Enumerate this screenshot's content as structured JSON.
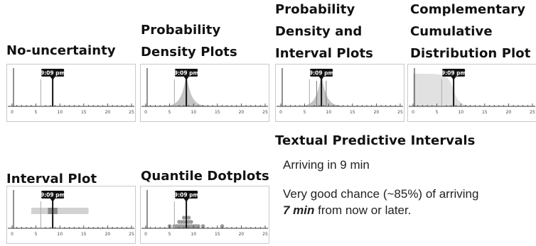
{
  "titles": {
    "no_uncertainty": "No-uncertainty",
    "pdf": "Probability Density Plots",
    "pdf_interval": "Probability Density and Interval Plots",
    "ccdf": "Complementary Cumulative Distribution Plot",
    "interval": "Interval Plot",
    "dotplot": "Quantile Dotplots",
    "textual": "Textual Predictive Intervals"
  },
  "bus_time_label": "9:09 pm",
  "axis": {
    "min": 0,
    "max": 25,
    "tick_labels": [
      "0",
      "5",
      "10",
      "15",
      "20",
      "25"
    ]
  },
  "chart_data": {
    "type": "diagram",
    "predicted_arrival_min": 8.5,
    "schedule_marker_min": 6,
    "interval_outer": [
      4,
      16
    ],
    "interval_inner": [
      7.5,
      9.5
    ],
    "density": {
      "mode": 8.5,
      "scale": 1.0
    },
    "dotplot_quantiles": [
      5,
      6,
      6.5,
      7,
      7,
      7.5,
      7.5,
      8,
      8,
      8,
      8.5,
      8.5,
      9,
      9,
      9,
      9.5,
      9.5,
      10,
      10.5,
      11,
      12,
      16
    ]
  },
  "textual": {
    "arriving": "Arriving in 9 min",
    "chance_prefix": "Very good chance (~85%) of arriving",
    "chance_bold": "7 min",
    "chance_suffix": " from now or later."
  },
  "colors": {
    "density": "#c4c4c4",
    "interval_outer": "#d2d2d2",
    "interval_inner": "#8a8a8a",
    "marker": "#111111",
    "dots": "#9a9a9a"
  }
}
